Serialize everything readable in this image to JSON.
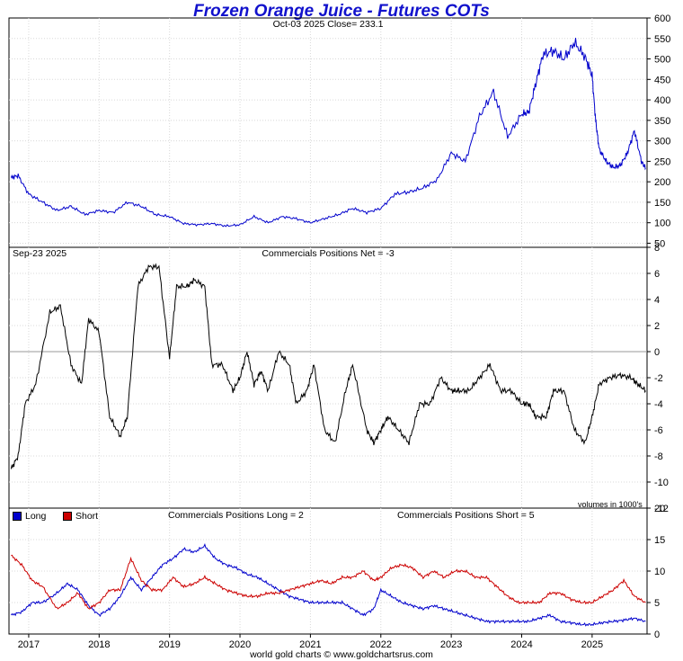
{
  "title": "Frozen Orange Juice - Futures COTs",
  "footer": "world gold charts © www.goldchartsrus.com",
  "chart_data": [
    {
      "id": "price",
      "type": "line",
      "subtitle": "Oct-03  2025   Close= 233.1",
      "ylim": [
        40,
        600
      ],
      "yticks": [
        50,
        100,
        150,
        200,
        250,
        300,
        350,
        400,
        450,
        500,
        550,
        600
      ],
      "grid": true,
      "series": [
        {
          "name": "Close",
          "color": "#0000cc",
          "x": [
            2016.75,
            2016.85,
            2017.0,
            2017.2,
            2017.4,
            2017.6,
            2017.8,
            2018.0,
            2018.2,
            2018.4,
            2018.6,
            2018.8,
            2019.0,
            2019.2,
            2019.4,
            2019.6,
            2019.8,
            2020.0,
            2020.2,
            2020.4,
            2020.6,
            2020.8,
            2021.0,
            2021.2,
            2021.4,
            2021.6,
            2021.8,
            2022.0,
            2022.2,
            2022.4,
            2022.6,
            2022.8,
            2023.0,
            2023.2,
            2023.4,
            2023.6,
            2023.8,
            2024.0,
            2024.1,
            2024.2,
            2024.3,
            2024.45,
            2024.6,
            2024.75,
            2024.9,
            2025.0,
            2025.05,
            2025.1,
            2025.2,
            2025.3,
            2025.4,
            2025.5,
            2025.6,
            2025.7,
            2025.76
          ],
          "values": [
            210,
            215,
            170,
            150,
            130,
            140,
            120,
            130,
            125,
            150,
            140,
            120,
            115,
            98,
            95,
            98,
            92,
            95,
            115,
            100,
            115,
            110,
            100,
            110,
            120,
            135,
            125,
            135,
            170,
            175,
            185,
            205,
            270,
            250,
            360,
            420,
            310,
            365,
            370,
            440,
            510,
            520,
            500,
            540,
            505,
            460,
            350,
            280,
            250,
            235,
            240,
            270,
            325,
            250,
            233
          ]
        }
      ]
    },
    {
      "id": "net",
      "type": "line",
      "date_label": "Sep-23  2025",
      "subtitle": "Commercials Positions Net = -3",
      "units_note": "volumes in 1000's",
      "ylim": [
        -12,
        8
      ],
      "yticks": [
        -12,
        -10,
        -8,
        -6,
        -4,
        -2,
        0,
        2,
        4,
        6,
        8
      ],
      "series": [
        {
          "name": "Net",
          "color": "#000000",
          "x": [
            2016.75,
            2016.85,
            2016.95,
            2017.1,
            2017.3,
            2017.45,
            2017.6,
            2017.75,
            2017.85,
            2018.0,
            2018.15,
            2018.3,
            2018.4,
            2018.55,
            2018.7,
            2018.85,
            2019.0,
            2019.1,
            2019.25,
            2019.35,
            2019.5,
            2019.6,
            2019.75,
            2019.9,
            2020.0,
            2020.1,
            2020.2,
            2020.3,
            2020.4,
            2020.55,
            2020.7,
            2020.8,
            2020.95,
            2021.05,
            2021.2,
            2021.35,
            2021.5,
            2021.6,
            2021.8,
            2021.9,
            2022.0,
            2022.1,
            2022.25,
            2022.4,
            2022.55,
            2022.7,
            2022.85,
            2023.0,
            2023.1,
            2023.25,
            2023.4,
            2023.55,
            2023.7,
            2023.85,
            2024.0,
            2024.1,
            2024.2,
            2024.35,
            2024.45,
            2024.6,
            2024.75,
            2024.9,
            2025.0,
            2025.1,
            2025.25,
            2025.4,
            2025.55,
            2025.65,
            2025.76
          ],
          "values": [
            -9,
            -8,
            -4,
            -2.5,
            3,
            3.5,
            -1,
            -2.5,
            2.5,
            1.5,
            -5,
            -6.5,
            -5,
            5,
            6.5,
            6.5,
            -0.5,
            5,
            5,
            5.5,
            5,
            -1,
            -1,
            -3,
            -2,
            0,
            -2.5,
            -1.5,
            -3,
            0,
            -1,
            -4,
            -3,
            -1,
            -6,
            -7,
            -3,
            -1,
            -6,
            -7,
            -6,
            -5,
            -6,
            -7,
            -4,
            -4,
            -2,
            -3,
            -3,
            -3,
            -2,
            -1,
            -3,
            -3,
            -4,
            -4,
            -5,
            -5,
            -3,
            -3,
            -6,
            -7,
            -5,
            -2.5,
            -2,
            -1.8,
            -2,
            -2.5,
            -3
          ]
        }
      ]
    },
    {
      "id": "long_short",
      "type": "line",
      "subtitle_long": "Commercials Positions Long = 2",
      "subtitle_short": "Commercials Positions Short = 5",
      "ylim": [
        0,
        20
      ],
      "yticks": [
        0,
        5,
        10,
        15,
        20
      ],
      "legend": [
        {
          "label": "Long",
          "color": "#0000cc"
        },
        {
          "label": "Short",
          "color": "#cc0000"
        }
      ],
      "x_ticks": [
        "2017",
        "2018",
        "2019",
        "2020",
        "2021",
        "2022",
        "2023",
        "2024",
        "2025"
      ],
      "series": [
        {
          "name": "Long",
          "color": "#0000cc",
          "x": [
            2016.75,
            2016.9,
            2017.05,
            2017.2,
            2017.4,
            2017.55,
            2017.7,
            2017.85,
            2018.0,
            2018.15,
            2018.3,
            2018.45,
            2018.6,
            2018.75,
            2018.9,
            2019.05,
            2019.2,
            2019.35,
            2019.5,
            2019.65,
            2019.8,
            2019.95,
            2020.1,
            2020.25,
            2020.4,
            2020.55,
            2020.7,
            2020.85,
            2021.0,
            2021.15,
            2021.3,
            2021.45,
            2021.6,
            2021.75,
            2021.9,
            2022.0,
            2022.15,
            2022.3,
            2022.45,
            2022.6,
            2022.75,
            2022.9,
            2023.05,
            2023.2,
            2023.35,
            2023.5,
            2023.65,
            2023.8,
            2023.95,
            2024.1,
            2024.25,
            2024.4,
            2024.55,
            2024.7,
            2024.85,
            2025.0,
            2025.15,
            2025.3,
            2025.45,
            2025.6,
            2025.76
          ],
          "values": [
            3,
            3.5,
            5,
            5,
            6.5,
            8,
            7,
            4.5,
            3,
            4,
            6,
            9,
            7,
            9,
            11,
            12,
            13.5,
            13,
            14,
            12,
            11,
            10.5,
            9.5,
            9,
            8,
            7,
            6,
            5.5,
            5,
            5,
            5,
            5,
            4,
            3,
            4,
            7,
            6,
            5,
            4.5,
            4,
            4.5,
            4,
            3.5,
            3,
            2.5,
            2,
            2,
            2,
            2,
            2,
            2.5,
            3,
            2,
            1.8,
            1.5,
            1.5,
            1.8,
            2,
            2.2,
            2.5,
            2
          ]
        },
        {
          "name": "Short",
          "color": "#cc0000",
          "x": [
            2016.75,
            2016.9,
            2017.05,
            2017.2,
            2017.4,
            2017.55,
            2017.7,
            2017.85,
            2018.0,
            2018.15,
            2018.3,
            2018.45,
            2018.6,
            2018.75,
            2018.9,
            2019.05,
            2019.2,
            2019.35,
            2019.5,
            2019.65,
            2019.8,
            2019.95,
            2020.1,
            2020.25,
            2020.4,
            2020.55,
            2020.7,
            2020.85,
            2021.0,
            2021.15,
            2021.3,
            2021.45,
            2021.6,
            2021.75,
            2021.9,
            2022.0,
            2022.15,
            2022.3,
            2022.45,
            2022.6,
            2022.75,
            2022.9,
            2023.05,
            2023.2,
            2023.35,
            2023.5,
            2023.65,
            2023.8,
            2023.95,
            2024.1,
            2024.25,
            2024.4,
            2024.55,
            2024.7,
            2024.85,
            2025.0,
            2025.15,
            2025.3,
            2025.45,
            2025.6,
            2025.76
          ],
          "values": [
            12.5,
            11,
            8.5,
            7.5,
            4,
            5,
            6.5,
            4,
            5,
            7,
            7,
            12,
            8.5,
            7,
            7,
            9,
            7.5,
            8,
            9,
            8,
            7,
            6.5,
            6,
            6,
            6.5,
            6.5,
            7,
            7.5,
            8,
            8.5,
            8,
            9,
            9,
            10,
            8.5,
            9,
            10.5,
            11,
            10.5,
            9,
            10,
            9,
            10,
            10,
            9,
            9,
            7.5,
            6,
            5,
            5,
            5,
            6.5,
            6.5,
            5.5,
            5,
            5,
            6,
            7,
            8.5,
            6,
            5
          ]
        }
      ]
    }
  ]
}
